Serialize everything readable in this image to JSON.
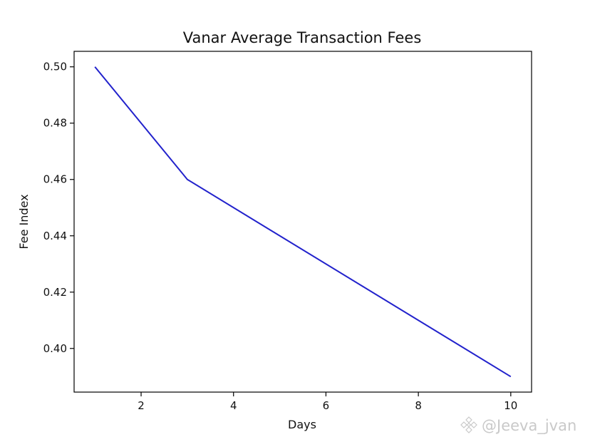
{
  "chart_data": {
    "type": "line",
    "title": "Vanar Average Transaction Fees",
    "xlabel": "Days",
    "ylabel": "Fee Index",
    "xlim": [
      0.55,
      10.45
    ],
    "ylim": [
      0.3845,
      0.5055
    ],
    "xticks": [
      2,
      4,
      6,
      8,
      10
    ],
    "yticks": [
      0.4,
      0.42,
      0.44,
      0.46,
      0.48,
      0.5
    ],
    "xtick_labels": [
      "2",
      "4",
      "6",
      "8",
      "10"
    ],
    "ytick_labels": [
      "0.40",
      "0.42",
      "0.44",
      "0.46",
      "0.48",
      "0.50"
    ],
    "grid": false,
    "series": [
      {
        "color": "#2222cc",
        "x": [
          1,
          3,
          10
        ],
        "y": [
          0.5,
          0.46,
          0.39
        ]
      }
    ]
  },
  "watermark": {
    "text": "@Jeeva_jvan",
    "icon": "binance-diamond-icon"
  }
}
